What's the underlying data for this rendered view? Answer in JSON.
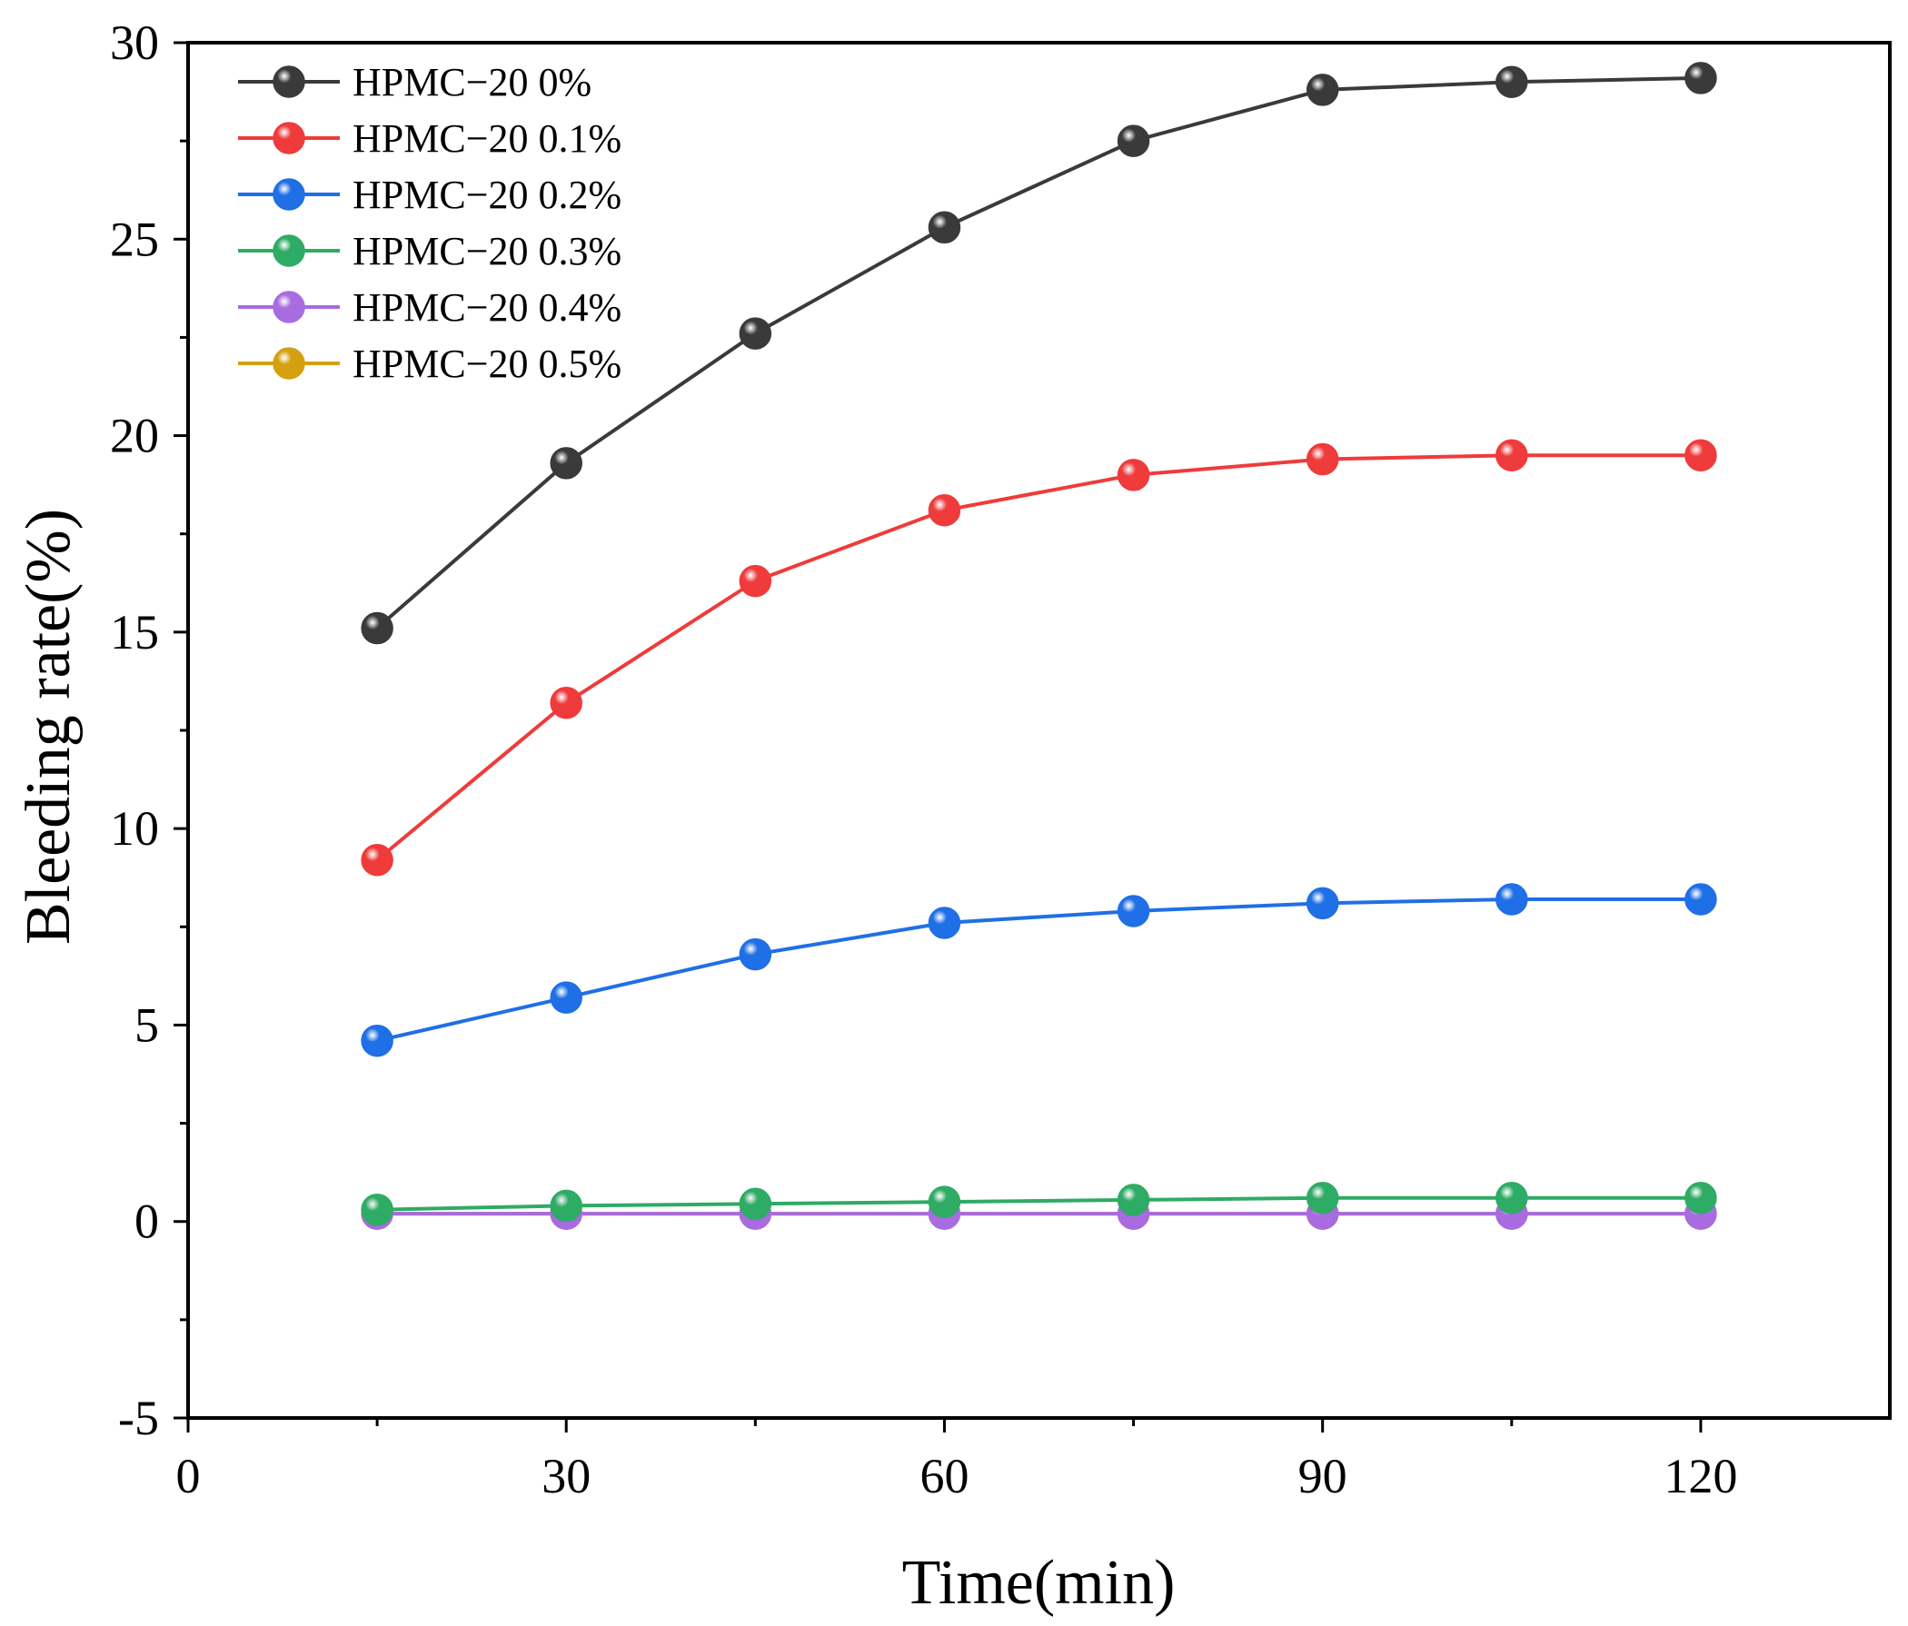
{
  "chart_data": {
    "type": "line",
    "title": "",
    "xlabel": "Time(min)",
    "ylabel": "Bleeding rate(%)",
    "xlim": [
      0,
      135
    ],
    "ylim": [
      -5,
      30
    ],
    "x_ticks": [
      0,
      30,
      60,
      90,
      120
    ],
    "x_tick_labels": [
      "0",
      "30",
      "60",
      "90",
      "120"
    ],
    "y_ticks": [
      -5,
      0,
      5,
      10,
      15,
      20,
      25,
      30
    ],
    "y_tick_labels": [
      "-5",
      "0",
      "5",
      "10",
      "15",
      "20",
      "25",
      "30"
    ],
    "grid": false,
    "legend_position": "top-left",
    "x": [
      15,
      30,
      45,
      60,
      75,
      90,
      105,
      120
    ],
    "series": [
      {
        "name": "HPMC−20 0%",
        "color": "#3a3a3a",
        "values": [
          15.1,
          19.3,
          22.6,
          25.3,
          27.5,
          28.8,
          29.0,
          29.1
        ]
      },
      {
        "name": "HPMC−20 0.1%",
        "color": "#ef3b3b",
        "values": [
          9.2,
          13.2,
          16.3,
          18.1,
          19.0,
          19.4,
          19.5,
          19.5
        ]
      },
      {
        "name": "HPMC−20 0.2%",
        "color": "#1f6fe6",
        "values": [
          4.6,
          5.7,
          6.8,
          7.6,
          7.9,
          8.1,
          8.2,
          8.2
        ]
      },
      {
        "name": "HPMC−20 0.3%",
        "color": "#2eab64",
        "values": [
          0.3,
          0.4,
          0.45,
          0.5,
          0.55,
          0.6,
          0.6,
          0.6
        ]
      },
      {
        "name": "HPMC−20 0.4%",
        "color": "#a86be0",
        "values": [
          0.2,
          0.2,
          0.2,
          0.2,
          0.2,
          0.2,
          0.2,
          0.2
        ]
      },
      {
        "name": "HPMC−20 0.5%",
        "color": "#d4a010",
        "values": [
          0.2,
          0.2,
          0.2,
          0.2,
          0.2,
          0.2,
          0.2,
          0.2
        ]
      }
    ]
  }
}
